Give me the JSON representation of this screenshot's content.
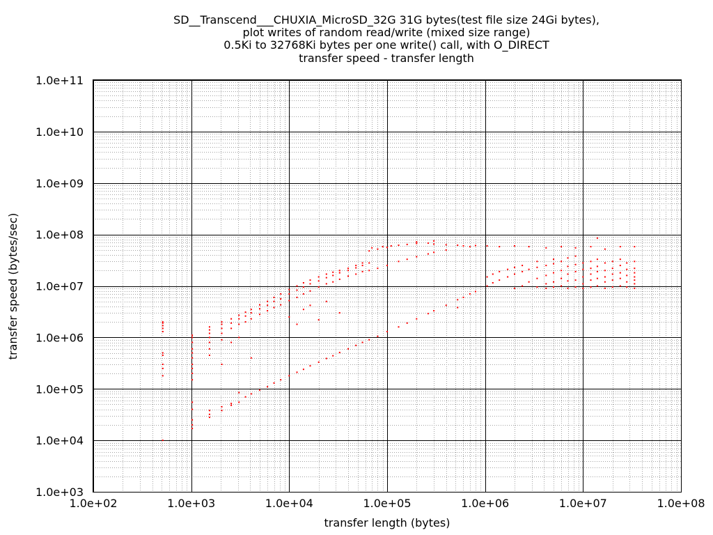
{
  "chart_data": {
    "type": "scatter",
    "title_lines": [
      "SD__Transcend___CHUXIA_MicroSD_32G 31G bytes(test file size 24Gi bytes),",
      "plot writes of random read/write (mixed size range)",
      "0.5Ki to 32768Ki bytes per one write() call, with O_DIRECT",
      "transfer speed - transfer length"
    ],
    "xlabel": "transfer length (bytes)",
    "ylabel": "transfer speed (bytes/sec)",
    "x_scale": "log",
    "y_scale": "log",
    "xlim": [
      100,
      100000000
    ],
    "ylim": [
      1000,
      100000000000
    ],
    "x_tick_labels": [
      "1.0e+02",
      "1.0e+03",
      "1.0e+04",
      "1.0e+05",
      "1.0e+06",
      "1.0e+07",
      "1.0e+08"
    ],
    "y_tick_labels": [
      "1.0e+03",
      "1.0e+04",
      "1.0e+05",
      "1.0e+06",
      "1.0e+07",
      "1.0e+08",
      "1.0e+09",
      "1.0e+10",
      "1.0e+11"
    ],
    "grid": true,
    "point_color": "#ff0000",
    "series": [
      {
        "points": [
          [
            512,
            10000
          ],
          [
            512,
            180000
          ],
          [
            512,
            250000
          ],
          [
            512,
            300000
          ],
          [
            512,
            450000
          ],
          [
            512,
            500000
          ],
          [
            512,
            1300000
          ],
          [
            512,
            1500000
          ],
          [
            512,
            1700000
          ],
          [
            512,
            1900000
          ],
          [
            512,
            2000000
          ],
          [
            1024,
            17000
          ],
          [
            1024,
            20000
          ],
          [
            1024,
            25000
          ],
          [
            1024,
            40000
          ],
          [
            1024,
            55000
          ],
          [
            1024,
            150000
          ],
          [
            1024,
            200000
          ],
          [
            1024,
            250000
          ],
          [
            1024,
            300000
          ],
          [
            1024,
            400000
          ],
          [
            1024,
            500000
          ],
          [
            1024,
            600000
          ],
          [
            1024,
            800000
          ],
          [
            1024,
            1000000
          ],
          [
            1024,
            1100000
          ],
          [
            1536,
            28000
          ],
          [
            1536,
            32000
          ],
          [
            1536,
            38000
          ],
          [
            1536,
            450000
          ],
          [
            1536,
            600000
          ],
          [
            1536,
            800000
          ],
          [
            1536,
            1000000
          ],
          [
            1536,
            1200000
          ],
          [
            1536,
            1400000
          ],
          [
            1536,
            1600000
          ],
          [
            2048,
            38000
          ],
          [
            2048,
            45000
          ],
          [
            2048,
            300000
          ],
          [
            2048,
            900000
          ],
          [
            2048,
            1200000
          ],
          [
            2048,
            1500000
          ],
          [
            2048,
            1800000
          ],
          [
            2048,
            2000000
          ],
          [
            2560,
            48000
          ],
          [
            2560,
            52000
          ],
          [
            2560,
            800000
          ],
          [
            2560,
            1500000
          ],
          [
            2560,
            1900000
          ],
          [
            2560,
            2300000
          ],
          [
            3072,
            55000
          ],
          [
            3072,
            85000
          ],
          [
            3072,
            1000000
          ],
          [
            3072,
            1800000
          ],
          [
            3072,
            2300000
          ],
          [
            3072,
            2700000
          ],
          [
            3584,
            70000
          ],
          [
            3584,
            2000000
          ],
          [
            3584,
            2600000
          ],
          [
            3584,
            3100000
          ],
          [
            4096,
            80000
          ],
          [
            4096,
            400000
          ],
          [
            4096,
            2300000
          ],
          [
            4096,
            3000000
          ],
          [
            4096,
            3500000
          ],
          [
            5000,
            95000
          ],
          [
            5000,
            2800000
          ],
          [
            5000,
            3600000
          ],
          [
            5000,
            4300000
          ],
          [
            6000,
            110000
          ],
          [
            6000,
            3300000
          ],
          [
            6000,
            4200000
          ],
          [
            6000,
            5000000
          ],
          [
            7000,
            130000
          ],
          [
            7000,
            3800000
          ],
          [
            7000,
            5000000
          ],
          [
            7000,
            6000000
          ],
          [
            8192,
            150000
          ],
          [
            8192,
            4300000
          ],
          [
            8192,
            5600000
          ],
          [
            8192,
            7000000
          ],
          [
            10000,
            180000
          ],
          [
            10000,
            2500000
          ],
          [
            10000,
            5200000
          ],
          [
            10000,
            7000000
          ],
          [
            10000,
            8500000
          ],
          [
            12000,
            210000
          ],
          [
            12000,
            1800000
          ],
          [
            12000,
            6000000
          ],
          [
            12000,
            8300000
          ],
          [
            12000,
            10000000
          ],
          [
            14000,
            240000
          ],
          [
            14000,
            3500000
          ],
          [
            14000,
            7000000
          ],
          [
            14000,
            9500000
          ],
          [
            14000,
            11500000
          ],
          [
            16384,
            280000
          ],
          [
            16384,
            4200000
          ],
          [
            16384,
            8000000
          ],
          [
            16384,
            11000000
          ],
          [
            16384,
            13000000
          ],
          [
            20000,
            330000
          ],
          [
            20000,
            2200000
          ],
          [
            20000,
            9500000
          ],
          [
            20000,
            12500000
          ],
          [
            20000,
            15000000
          ],
          [
            24000,
            390000
          ],
          [
            24000,
            5000000
          ],
          [
            24000,
            11000000
          ],
          [
            24000,
            14500000
          ],
          [
            24000,
            17000000
          ],
          [
            28000,
            440000
          ],
          [
            28000,
            12000000
          ],
          [
            28000,
            16000000
          ],
          [
            28000,
            18500000
          ],
          [
            32768,
            510000
          ],
          [
            32768,
            3000000
          ],
          [
            32768,
            13500000
          ],
          [
            32768,
            18000000
          ],
          [
            32768,
            20000000
          ],
          [
            40000,
            600000
          ],
          [
            40000,
            15500000
          ],
          [
            40000,
            20000000
          ],
          [
            40000,
            22000000
          ],
          [
            48000,
            700000
          ],
          [
            48000,
            17000000
          ],
          [
            48000,
            22500000
          ],
          [
            48000,
            25000000
          ],
          [
            56000,
            800000
          ],
          [
            56000,
            19000000
          ],
          [
            56000,
            25000000
          ],
          [
            56000,
            28000000
          ],
          [
            65536,
            900000
          ],
          [
            65536,
            20000000
          ],
          [
            65536,
            28000000
          ],
          [
            65536,
            48000000
          ],
          [
            70000,
            55000000
          ],
          [
            80000,
            1050000
          ],
          [
            80000,
            22000000
          ],
          [
            80000,
            52000000
          ],
          [
            90000,
            58000000
          ],
          [
            100000,
            1300000
          ],
          [
            100000,
            25000000
          ],
          [
            100000,
            56000000
          ],
          [
            110000,
            60000000
          ],
          [
            131072,
            1600000
          ],
          [
            131072,
            30000000
          ],
          [
            131072,
            62000000
          ],
          [
            160000,
            1900000
          ],
          [
            160000,
            33000000
          ],
          [
            160000,
            64000000
          ],
          [
            200000,
            2300000
          ],
          [
            200000,
            37000000
          ],
          [
            200000,
            67000000
          ],
          [
            200000,
            72000000
          ],
          [
            262144,
            2900000
          ],
          [
            262144,
            42000000
          ],
          [
            262144,
            68000000
          ],
          [
            300000,
            3300000
          ],
          [
            300000,
            45000000
          ],
          [
            300000,
            65000000
          ],
          [
            300000,
            75000000
          ],
          [
            400000,
            4200000
          ],
          [
            400000,
            50000000
          ],
          [
            400000,
            63000000
          ],
          [
            524288,
            5400000
          ],
          [
            524288,
            62000000
          ],
          [
            524288,
            3800000
          ],
          [
            600000,
            6000000
          ],
          [
            600000,
            60000000
          ],
          [
            700000,
            7000000
          ],
          [
            700000,
            58000000
          ],
          [
            800000,
            7800000
          ],
          [
            800000,
            61000000
          ],
          [
            1048576,
            10000000
          ],
          [
            1048576,
            15000000
          ],
          [
            1048576,
            60000000
          ],
          [
            1200000,
            11500000
          ],
          [
            1200000,
            17000000
          ],
          [
            1400000,
            13000000
          ],
          [
            1400000,
            19000000
          ],
          [
            1400000,
            58000000
          ],
          [
            1700000,
            15000000
          ],
          [
            1700000,
            21000000
          ],
          [
            2000000,
            9000000
          ],
          [
            2000000,
            17000000
          ],
          [
            2000000,
            23000000
          ],
          [
            2000000,
            60000000
          ],
          [
            2400000,
            10000000
          ],
          [
            2400000,
            19000000
          ],
          [
            2400000,
            25000000
          ],
          [
            2800000,
            12000000
          ],
          [
            2800000,
            21000000
          ],
          [
            2800000,
            58000000
          ],
          [
            3400000,
            9500000
          ],
          [
            3400000,
            14000000
          ],
          [
            3400000,
            23000000
          ],
          [
            3400000,
            30000000
          ],
          [
            4194304,
            9000000
          ],
          [
            4194304,
            11000000
          ],
          [
            4194304,
            16000000
          ],
          [
            4194304,
            25000000
          ],
          [
            4194304,
            55000000
          ],
          [
            5000000,
            9500000
          ],
          [
            5000000,
            12000000
          ],
          [
            5000000,
            18000000
          ],
          [
            5000000,
            27000000
          ],
          [
            5000000,
            33000000
          ],
          [
            6000000,
            10000000
          ],
          [
            6000000,
            14000000
          ],
          [
            6000000,
            20000000
          ],
          [
            6000000,
            30000000
          ],
          [
            6000000,
            58000000
          ],
          [
            7000000,
            9000000
          ],
          [
            7000000,
            12500000
          ],
          [
            7000000,
            17000000
          ],
          [
            7000000,
            24000000
          ],
          [
            7000000,
            35000000
          ],
          [
            8388608,
            9500000
          ],
          [
            8388608,
            13000000
          ],
          [
            8388608,
            19000000
          ],
          [
            8388608,
            26000000
          ],
          [
            8388608,
            38000000
          ],
          [
            8388608,
            55000000
          ],
          [
            10000000,
            9000000
          ],
          [
            10000000,
            11000000
          ],
          [
            10000000,
            15000000
          ],
          [
            10000000,
            21000000
          ],
          [
            10000000,
            28000000
          ],
          [
            12000000,
            9500000
          ],
          [
            12000000,
            13000000
          ],
          [
            12000000,
            17000000
          ],
          [
            12000000,
            22000000
          ],
          [
            12000000,
            30000000
          ],
          [
            12000000,
            58000000
          ],
          [
            14000000,
            10000000
          ],
          [
            14000000,
            14000000
          ],
          [
            14000000,
            19000000
          ],
          [
            14000000,
            24000000
          ],
          [
            14000000,
            33000000
          ],
          [
            14000000,
            85000000
          ],
          [
            16777216,
            9000000
          ],
          [
            16777216,
            12000000
          ],
          [
            16777216,
            15000000
          ],
          [
            16777216,
            20000000
          ],
          [
            16777216,
            28000000
          ],
          [
            16777216,
            52000000
          ],
          [
            20000000,
            9500000
          ],
          [
            20000000,
            13000000
          ],
          [
            20000000,
            17000000
          ],
          [
            20000000,
            22000000
          ],
          [
            20000000,
            30000000
          ],
          [
            24000000,
            10000000
          ],
          [
            24000000,
            14000000
          ],
          [
            24000000,
            18000000
          ],
          [
            24000000,
            25000000
          ],
          [
            24000000,
            33000000
          ],
          [
            24000000,
            58000000
          ],
          [
            28000000,
            9500000
          ],
          [
            28000000,
            12000000
          ],
          [
            28000000,
            16000000
          ],
          [
            28000000,
            21000000
          ],
          [
            28000000,
            28000000
          ],
          [
            33554432,
            9000000
          ],
          [
            33554432,
            11000000
          ],
          [
            33554432,
            13000000
          ],
          [
            33554432,
            15000000
          ],
          [
            33554432,
            18000000
          ],
          [
            33554432,
            22000000
          ],
          [
            33554432,
            30000000
          ],
          [
            33554432,
            58000000
          ]
        ]
      }
    ]
  }
}
